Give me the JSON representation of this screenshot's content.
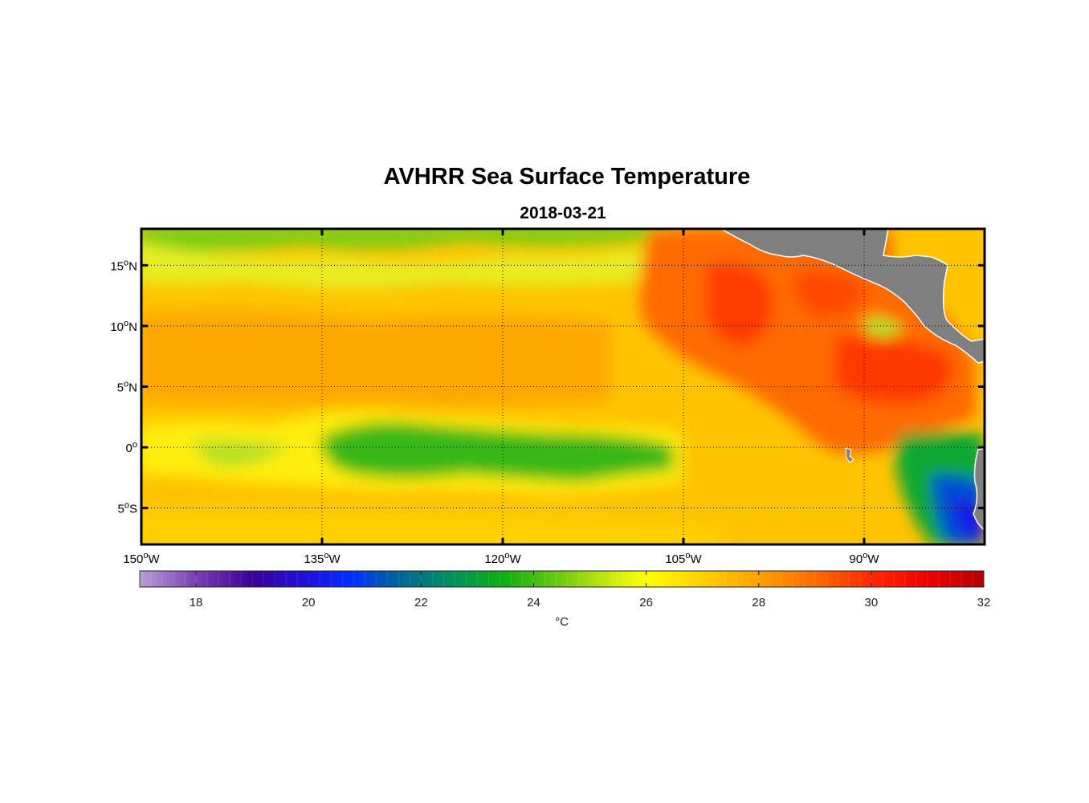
{
  "title": "AVHRR Sea Surface Temperature",
  "subtitle": "2018-03-21",
  "map": {
    "lon_range": [
      -150,
      -80
    ],
    "lat_range": [
      -8,
      18
    ],
    "grid": "dotted",
    "lon_ticks": [
      {
        "value": -150,
        "label": "150",
        "sup": "o",
        "suffix": "W"
      },
      {
        "value": -135,
        "label": "135",
        "sup": "o",
        "suffix": "W"
      },
      {
        "value": -120,
        "label": "120",
        "sup": "o",
        "suffix": "W"
      },
      {
        "value": -105,
        "label": "105",
        "sup": "o",
        "suffix": "W"
      },
      {
        "value": -90,
        "label": "90",
        "sup": "o",
        "suffix": "W"
      }
    ],
    "lat_ticks": [
      {
        "value": 15,
        "label": "15",
        "sup": "o",
        "suffix": "N"
      },
      {
        "value": 10,
        "label": "10",
        "sup": "o",
        "suffix": "N"
      },
      {
        "value": 5,
        "label": "5",
        "sup": "o",
        "suffix": "N"
      },
      {
        "value": 0,
        "label": "0",
        "sup": "o",
        "suffix": ""
      },
      {
        "value": -5,
        "label": "5",
        "sup": "o",
        "suffix": "S"
      }
    ],
    "land_color": "#808080"
  },
  "colorbar": {
    "min": 17,
    "max": 32,
    "ticks": [
      18,
      20,
      22,
      24,
      26,
      28,
      30,
      32
    ],
    "units": "°C",
    "stops": [
      {
        "t": 17,
        "c": "#b8a0d8"
      },
      {
        "t": 18,
        "c": "#7a3fb0"
      },
      {
        "t": 19,
        "c": "#3a0098"
      },
      {
        "t": 20,
        "c": "#1f10e0"
      },
      {
        "t": 20.8,
        "c": "#0030ff"
      },
      {
        "t": 21.5,
        "c": "#0060a0"
      },
      {
        "t": 22.5,
        "c": "#009060"
      },
      {
        "t": 23.5,
        "c": "#10b010"
      },
      {
        "t": 24.5,
        "c": "#70cc10"
      },
      {
        "t": 25.5,
        "c": "#d8ee10"
      },
      {
        "t": 26,
        "c": "#ffff00"
      },
      {
        "t": 27,
        "c": "#ffd000"
      },
      {
        "t": 28,
        "c": "#ffa000"
      },
      {
        "t": 29,
        "c": "#ff6a00"
      },
      {
        "t": 30,
        "c": "#ff2800"
      },
      {
        "t": 31,
        "c": "#f00000"
      },
      {
        "t": 32,
        "c": "#b00000"
      }
    ]
  }
}
